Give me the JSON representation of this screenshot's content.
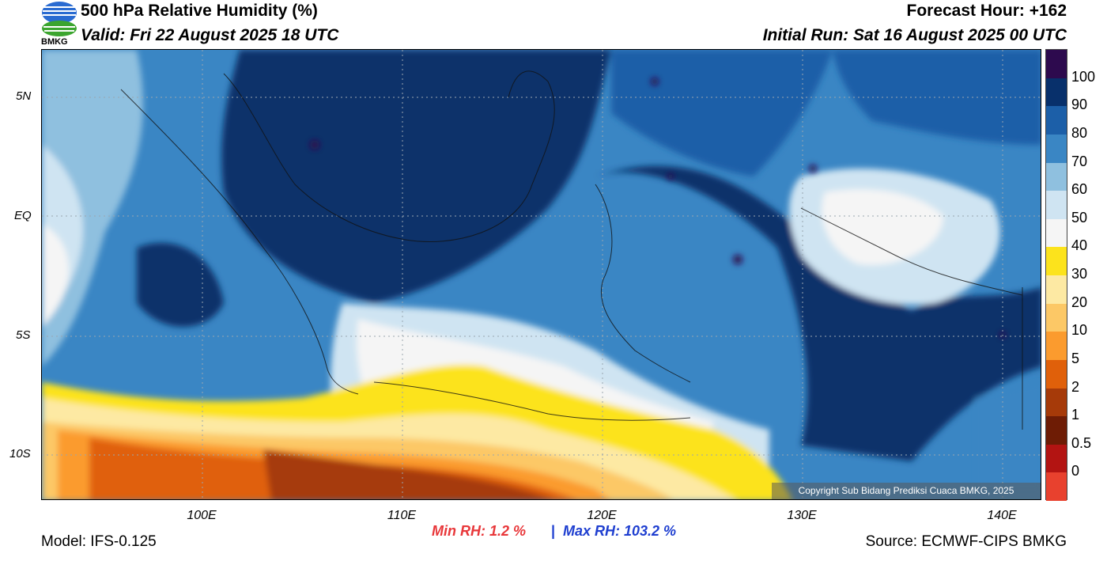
{
  "header": {
    "title": "500 hPa Relative Humidity (%)",
    "valid": "Valid: Fri 22 August 2025 18 UTC",
    "forecast_hour": "Forecast Hour: +162",
    "initial_run": "Initial Run: Sat 16 August 2025 00 UTC",
    "logo_text": "BMKG"
  },
  "axes": {
    "lat_labels": [
      "5N",
      "EQ",
      "5S",
      "10S"
    ],
    "lon_labels": [
      "100E",
      "110E",
      "120E",
      "130E",
      "140E"
    ]
  },
  "colorbar": {
    "labels": [
      "100",
      "90",
      "80",
      "70",
      "60",
      "50",
      "40",
      "30",
      "20",
      "10",
      "5",
      "2",
      "1",
      "0.5",
      "0"
    ],
    "colors": [
      "#2d0a4e",
      "#08306b",
      "#1c5fa8",
      "#3a86c4",
      "#8fc0df",
      "#cfe4f2",
      "#f5f5f5",
      "#fce31c",
      "#fde9a3",
      "#fcc866",
      "#fb9b2e",
      "#e0600a",
      "#a63a09",
      "#6e1c05",
      "#b31412",
      "#e8412e"
    ]
  },
  "stats": {
    "min_rh": "Min RH:   1.2 %",
    "separator": "|",
    "max_rh": "Max RH: 103.2 %"
  },
  "footer": {
    "model": "Model: IFS-0.125",
    "source": "Source: ECMWF-CIPS BMKG",
    "copyright": "Copyright Sub Bidang Prediksi Cuaca BMKG, 2025"
  }
}
